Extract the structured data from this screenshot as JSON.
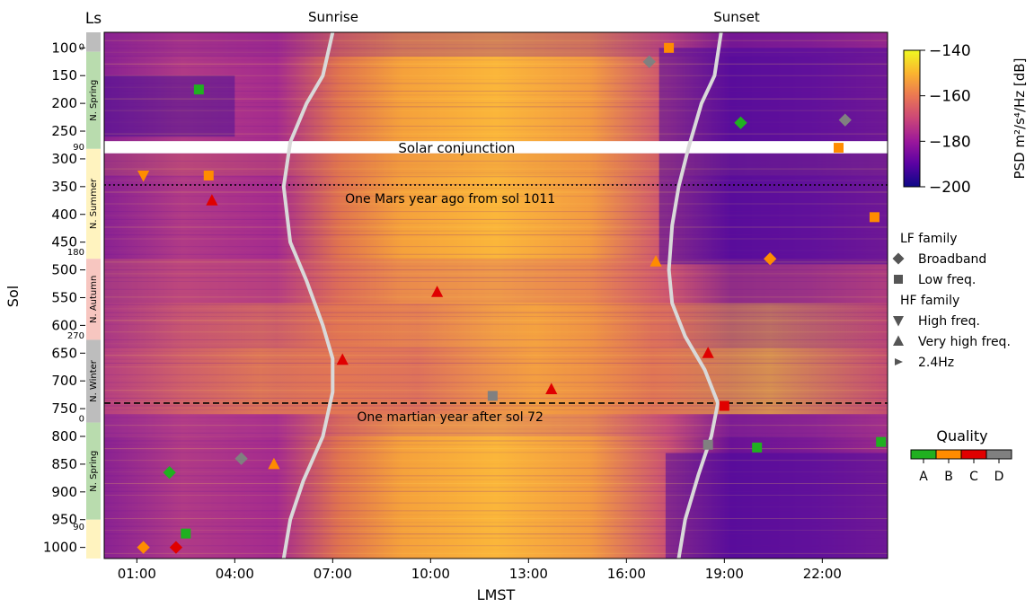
{
  "chart_data": {
    "type": "heatmap",
    "title": "",
    "xlabel": "LMST",
    "ylabel": "Sol",
    "season_axis_label": "Ls",
    "xlim": [
      0,
      24
    ],
    "ylim": [
      1020,
      72
    ],
    "x_ticks": [
      {
        "v": 1,
        "label": "01:00"
      },
      {
        "v": 4,
        "label": "04:00"
      },
      {
        "v": 7,
        "label": "07:00"
      },
      {
        "v": 10,
        "label": "10:00"
      },
      {
        "v": 13,
        "label": "13:00"
      },
      {
        "v": 16,
        "label": "16:00"
      },
      {
        "v": 19,
        "label": "19:00"
      },
      {
        "v": 22,
        "label": "22:00"
      }
    ],
    "y_ticks": [
      {
        "v": 100,
        "label": "100"
      },
      {
        "v": 150,
        "label": "150"
      },
      {
        "v": 200,
        "label": "200"
      },
      {
        "v": 250,
        "label": "250"
      },
      {
        "v": 300,
        "label": "300"
      },
      {
        "v": 350,
        "label": "350"
      },
      {
        "v": 400,
        "label": "400"
      },
      {
        "v": 450,
        "label": "450"
      },
      {
        "v": 500,
        "label": "500"
      },
      {
        "v": 550,
        "label": "550"
      },
      {
        "v": 600,
        "label": "600"
      },
      {
        "v": 650,
        "label": "650"
      },
      {
        "v": 700,
        "label": "700"
      },
      {
        "v": 750,
        "label": "750"
      },
      {
        "v": 800,
        "label": "800"
      },
      {
        "v": 850,
        "label": "850"
      },
      {
        "v": 900,
        "label": "900"
      },
      {
        "v": 950,
        "label": "950"
      },
      {
        "v": 1000,
        "label": "1000"
      }
    ],
    "seasons": [
      {
        "from": 72,
        "to": 107,
        "color": "#bdbdbd",
        "label": ""
      },
      {
        "from": 107,
        "to": 282,
        "color": "#b9dcae",
        "label": "N. Spring"
      },
      {
        "from": 282,
        "to": 480,
        "color": "#fff3bf",
        "label": "N. Summer"
      },
      {
        "from": 480,
        "to": 626,
        "color": "#f7c6c0",
        "label": "N. Autumn"
      },
      {
        "from": 626,
        "to": 775,
        "color": "#bdbdbd",
        "label": "N. Winter"
      },
      {
        "from": 775,
        "to": 950,
        "color": "#b9dcae",
        "label": "N. Spring"
      },
      {
        "from": 950,
        "to": 1020,
        "color": "#fff3bf",
        "label": ""
      }
    ],
    "ls_marks": [
      {
        "sol": 110,
        "label": "0"
      },
      {
        "sol": 290,
        "label": "90"
      },
      {
        "sol": 480,
        "label": "180"
      },
      {
        "sol": 630,
        "label": "270"
      },
      {
        "sol": 780,
        "label": "0"
      },
      {
        "sol": 975,
        "label": "90"
      }
    ],
    "colorbar": {
      "label": "PSD m²/s⁴/Hz [dB]",
      "min": -200,
      "max": -140,
      "ticks": [
        {
          "v": -140,
          "label": "−140"
        },
        {
          "v": -160,
          "label": "−160"
        },
        {
          "v": -180,
          "label": "−180"
        },
        {
          "v": -200,
          "label": "−200"
        }
      ],
      "stops": [
        "#0d0887",
        "#5b02a3",
        "#9a179b",
        "#cb4678",
        "#eb7852",
        "#fbb32f",
        "#f0f921"
      ]
    },
    "sunrise": {
      "label": "Sunrise",
      "points": [
        [
          72,
          7.0
        ],
        [
          150,
          6.7
        ],
        [
          200,
          6.2
        ],
        [
          270,
          5.7
        ],
        [
          350,
          5.5
        ],
        [
          450,
          5.7
        ],
        [
          520,
          6.2
        ],
        [
          600,
          6.7
        ],
        [
          660,
          7.0
        ],
        [
          720,
          7.0
        ],
        [
          800,
          6.7
        ],
        [
          880,
          6.1
        ],
        [
          950,
          5.7
        ],
        [
          1020,
          5.5
        ]
      ]
    },
    "sunset": {
      "label": "Sunset",
      "points": [
        [
          72,
          18.9
        ],
        [
          150,
          18.7
        ],
        [
          200,
          18.3
        ],
        [
          280,
          17.9
        ],
        [
          350,
          17.6
        ],
        [
          420,
          17.4
        ],
        [
          500,
          17.3
        ],
        [
          560,
          17.4
        ],
        [
          620,
          17.8
        ],
        [
          680,
          18.4
        ],
        [
          740,
          18.8
        ],
        [
          800,
          18.6
        ],
        [
          870,
          18.2
        ],
        [
          950,
          17.8
        ],
        [
          1020,
          17.6
        ]
      ]
    },
    "conjunction": {
      "from": 268,
      "to": 290,
      "label": "Solar conjunction"
    },
    "reference_lines": [
      {
        "sol": 347,
        "style": "dotted",
        "label": "One Mars year ago from sol 1011"
      },
      {
        "sol": 740,
        "style": "dashed",
        "label": "One martian year after sol 72"
      }
    ],
    "legend": {
      "lf_title": "LF family",
      "hf_title": "HF family",
      "entries": [
        {
          "marker": "diamond",
          "label": "Broadband",
          "group": "LF"
        },
        {
          "marker": "square",
          "label": "Low freq.",
          "group": "LF"
        },
        {
          "marker": "triangle-down",
          "label": "High freq.",
          "group": "HF"
        },
        {
          "marker": "triangle-up",
          "label": "Very high freq.",
          "group": "HF"
        },
        {
          "marker": "triangle-right",
          "label": "2.4Hz",
          "group": "HF"
        }
      ]
    },
    "quality": {
      "title": "Quality",
      "classes": [
        {
          "label": "A",
          "color": "#20b020"
        },
        {
          "label": "B",
          "color": "#ff8c00"
        },
        {
          "label": "C",
          "color": "#e00000"
        },
        {
          "label": "D",
          "color": "#808080"
        }
      ]
    },
    "events_note_series": [
      {
        "lmst": 2.9,
        "sol": 175,
        "marker": "square",
        "quality": "A"
      },
      {
        "lmst": 3.2,
        "sol": 330,
        "marker": "square",
        "quality": "B"
      },
      {
        "lmst": 1.2,
        "sol": 330,
        "marker": "triangle-down",
        "quality": "B"
      },
      {
        "lmst": 3.3,
        "sol": 375,
        "marker": "triangle-up",
        "quality": "C"
      },
      {
        "lmst": 1.2,
        "sol": 1000,
        "marker": "diamond",
        "quality": "B"
      },
      {
        "lmst": 2.0,
        "sol": 865,
        "marker": "diamond",
        "quality": "A"
      },
      {
        "lmst": 2.5,
        "sol": 975,
        "marker": "square",
        "quality": "A"
      },
      {
        "lmst": 2.2,
        "sol": 1000,
        "marker": "diamond",
        "quality": "C"
      },
      {
        "lmst": 4.2,
        "sol": 840,
        "marker": "diamond",
        "quality": "D"
      },
      {
        "lmst": 5.2,
        "sol": 850,
        "marker": "triangle-up",
        "quality": "B"
      },
      {
        "lmst": 7.3,
        "sol": 662,
        "marker": "triangle-up",
        "quality": "C"
      },
      {
        "lmst": 10.2,
        "sol": 540,
        "marker": "triangle-up",
        "quality": "C"
      },
      {
        "lmst": 11.9,
        "sol": 727,
        "marker": "square",
        "quality": "D"
      },
      {
        "lmst": 13.7,
        "sol": 715,
        "marker": "triangle-up",
        "quality": "C"
      },
      {
        "lmst": 16.7,
        "sol": 125,
        "marker": "diamond",
        "quality": "D"
      },
      {
        "lmst": 17.3,
        "sol": 100,
        "marker": "square",
        "quality": "B"
      },
      {
        "lmst": 19.5,
        "sol": 235,
        "marker": "diamond",
        "quality": "A"
      },
      {
        "lmst": 22.7,
        "sol": 230,
        "marker": "diamond",
        "quality": "D"
      },
      {
        "lmst": 18.5,
        "sol": 650,
        "marker": "triangle-up",
        "quality": "C"
      },
      {
        "lmst": 19.0,
        "sol": 745,
        "marker": "square",
        "quality": "C"
      },
      {
        "lmst": 18.5,
        "sol": 815,
        "marker": "square",
        "quality": "D"
      },
      {
        "lmst": 20.0,
        "sol": 820,
        "marker": "square",
        "quality": "A"
      },
      {
        "lmst": 23.8,
        "sol": 810,
        "marker": "square",
        "quality": "A"
      },
      {
        "lmst": 23.6,
        "sol": 405,
        "marker": "square",
        "quality": "B"
      },
      {
        "lmst": 20.4,
        "sol": 480,
        "marker": "diamond",
        "quality": "B"
      },
      {
        "lmst": 22.5,
        "sol": 280,
        "marker": "square",
        "quality": "B"
      },
      {
        "lmst": 16.9,
        "sol": 485,
        "marker": "triangle-up",
        "quality": "B"
      }
    ]
  }
}
